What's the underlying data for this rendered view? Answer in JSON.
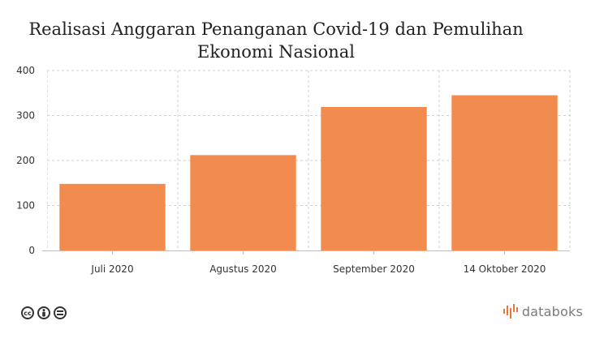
{
  "chart_data": {
    "type": "bar",
    "title": "Realisasi Anggaran Penanganan Covid-19 dan Pemulihan Ekonomi Nasional",
    "title_lines": [
      "Realisasi Anggaran Penanganan Covid-19 dan Pemulihan",
      "Ekonomi Nasional"
    ],
    "categories": [
      "Juli 2020",
      "Agustus 2020",
      "September 2020",
      "14 Oktober 2020"
    ],
    "values": [
      148,
      212,
      319,
      345
    ],
    "ylim": [
      0,
      400
    ],
    "yticks": [
      "0",
      "100",
      "200",
      "300",
      "400"
    ],
    "xlabel": "",
    "ylabel": "",
    "grid": true,
    "bar_color": "#f28c4e"
  },
  "footer": {
    "license_icons": [
      "cc-icon",
      "by-icon",
      "nd-icon"
    ],
    "brand": "databoks",
    "brand_color": "#e9753a"
  }
}
